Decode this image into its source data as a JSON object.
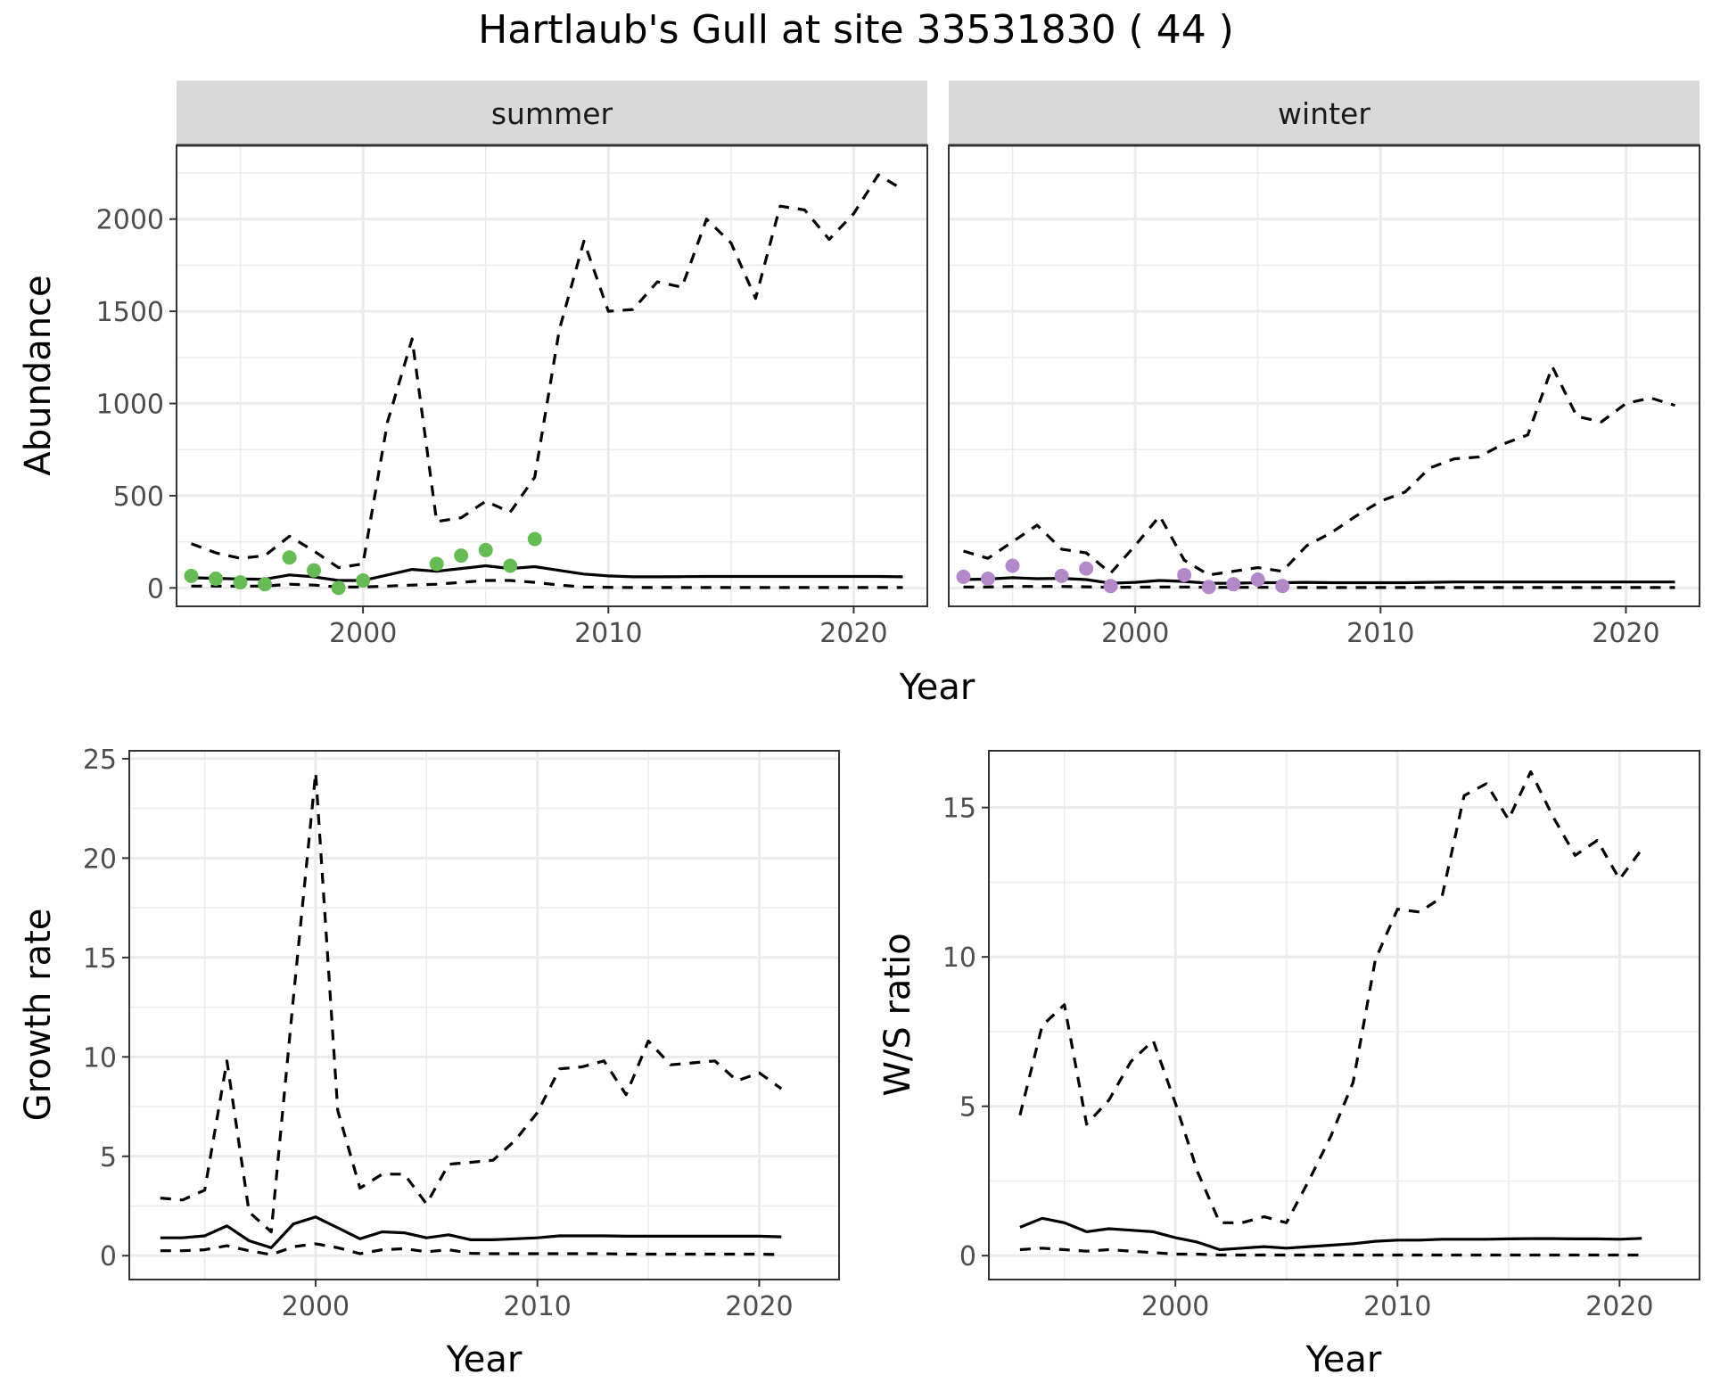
{
  "figure": {
    "title": "Hartlaub's Gull at site 33531830 ( 44 )"
  },
  "colors": {
    "summer_points": "#66bb55",
    "winter_points": "#b388c8",
    "lines": "#000000",
    "strip_fill": "#d9d9d9",
    "grid": "#ebebeb"
  },
  "chart_data": [
    {
      "type": "line",
      "panel": "abundance",
      "ylabel": "Abundance",
      "xlabel": "Year",
      "xlim": [
        1992.4,
        2023
      ],
      "ylim": [
        -100,
        2400
      ],
      "xticks": [
        2000,
        2010,
        2020
      ],
      "yticks": [
        0,
        500,
        1000,
        1500,
        2000
      ],
      "facets": [
        {
          "label": "summer",
          "series": [
            {
              "style": "dashed",
              "x": [
                1993,
                1994,
                1995,
                1996,
                1997,
                1998,
                1999,
                2000,
                2001,
                2002,
                2003,
                2004,
                2005,
                2006,
                2007,
                2008,
                2009,
                2010,
                2011,
                2012,
                2013,
                2014,
                2015,
                2016,
                2017,
                2018,
                2019,
                2020,
                2021,
                2022
              ],
              "values": [
                240,
                190,
                160,
                175,
                280,
                200,
                110,
                130,
                900,
                1350,
                360,
                380,
                470,
                410,
                600,
                1400,
                1880,
                1500,
                1510,
                1660,
                1630,
                2000,
                1870,
                1570,
                2070,
                2050,
                1890,
                2030,
                2240,
                2160
              ]
            },
            {
              "style": "solid",
              "x": [
                1993,
                1994,
                1995,
                1996,
                1997,
                1998,
                1999,
                2000,
                2001,
                2002,
                2003,
                2004,
                2005,
                2006,
                2007,
                2008,
                2009,
                2010,
                2011,
                2012,
                2013,
                2014,
                2015,
                2016,
                2017,
                2018,
                2019,
                2020,
                2021,
                2022
              ],
              "values": [
                55,
                52,
                48,
                47,
                70,
                60,
                40,
                40,
                70,
                100,
                90,
                105,
                120,
                105,
                115,
                95,
                75,
                65,
                60,
                60,
                61,
                62,
                62,
                62,
                62,
                62,
                62,
                62,
                62,
                60
              ]
            },
            {
              "style": "dashed",
              "x": [
                1993,
                1994,
                1995,
                1996,
                1997,
                1998,
                1999,
                2000,
                2001,
                2002,
                2003,
                2004,
                2005,
                2006,
                2007,
                2008,
                2009,
                2010,
                2011,
                2012,
                2013,
                2014,
                2015,
                2016,
                2017,
                2018,
                2019,
                2020,
                2021,
                2022
              ],
              "values": [
                10,
                10,
                10,
                10,
                20,
                15,
                5,
                5,
                10,
                15,
                20,
                30,
                40,
                40,
                30,
                15,
                5,
                3,
                2,
                2,
                2,
                2,
                2,
                2,
                2,
                2,
                2,
                2,
                2,
                2
              ]
            }
          ],
          "points": {
            "x": [
              1993,
              1994,
              1995,
              1996,
              1997,
              1998,
              1999,
              2000,
              2003,
              2004,
              2005,
              2006,
              2007
            ],
            "values": [
              65,
              50,
              30,
              20,
              165,
              95,
              0,
              40,
              130,
              175,
              205,
              120,
              265
            ]
          }
        },
        {
          "label": "winter",
          "series": [
            {
              "style": "dashed",
              "x": [
                1993,
                1994,
                1995,
                1996,
                1997,
                1998,
                1999,
                2000,
                2001,
                2002,
                2003,
                2004,
                2005,
                2006,
                2007,
                2008,
                2009,
                2010,
                2011,
                2012,
                2013,
                2014,
                2015,
                2016,
                2017,
                2018,
                2019,
                2020,
                2021,
                2022
              ],
              "values": [
                200,
                160,
                250,
                340,
                210,
                190,
                80,
                230,
                390,
                150,
                70,
                90,
                110,
                90,
                230,
                300,
                390,
                470,
                520,
                650,
                700,
                710,
                780,
                830,
                1200,
                930,
                900,
                1000,
                1030,
                990
              ]
            },
            {
              "style": "solid",
              "x": [
                1993,
                1994,
                1995,
                1996,
                1997,
                1998,
                1999,
                2000,
                2001,
                2002,
                2003,
                2004,
                2005,
                2006,
                2007,
                2008,
                2009,
                2010,
                2011,
                2012,
                2013,
                2014,
                2015,
                2016,
                2017,
                2018,
                2019,
                2020,
                2021,
                2022
              ],
              "values": [
                45,
                48,
                55,
                50,
                52,
                45,
                25,
                30,
                40,
                35,
                25,
                25,
                28,
                28,
                30,
                28,
                28,
                28,
                28,
                30,
                32,
                32,
                32,
                32,
                32,
                32,
                32,
                32,
                32,
                32
              ]
            },
            {
              "style": "dashed",
              "x": [
                1993,
                1994,
                1995,
                1996,
                1997,
                1998,
                1999,
                2000,
                2001,
                2002,
                2003,
                2004,
                2005,
                2006,
                2007,
                2008,
                2009,
                2010,
                2011,
                2012,
                2013,
                2014,
                2015,
                2016,
                2017,
                2018,
                2019,
                2020,
                2021,
                2022
              ],
              "values": [
                5,
                5,
                8,
                8,
                8,
                6,
                3,
                4,
                5,
                5,
                3,
                3,
                3,
                3,
                2,
                2,
                2,
                2,
                2,
                2,
                2,
                2,
                2,
                2,
                2,
                2,
                2,
                2,
                2,
                2
              ]
            }
          ],
          "points": {
            "x": [
              1993,
              1994,
              1995,
              1997,
              1998,
              1999,
              2002,
              2003,
              2004,
              2005,
              2006
            ],
            "values": [
              60,
              50,
              120,
              65,
              105,
              10,
              70,
              5,
              20,
              45,
              10
            ]
          }
        }
      ]
    },
    {
      "type": "line",
      "panel": "growth",
      "ylabel": "Growth rate",
      "xlabel": "Year",
      "xlim": [
        1991.6,
        2023.6
      ],
      "ylim": [
        -1.2,
        25.4
      ],
      "xticks": [
        2000,
        2010,
        2020
      ],
      "yticks": [
        0,
        5,
        10,
        15,
        20,
        25
      ],
      "series": [
        {
          "style": "dashed",
          "x": [
            1993,
            1994,
            1995,
            1996,
            1997,
            1998,
            1999,
            2000,
            2001,
            2002,
            2003,
            2004,
            2005,
            2006,
            2007,
            2008,
            2009,
            2010,
            2011,
            2012,
            2013,
            2014,
            2015,
            2016,
            2017,
            2018,
            2019,
            2020,
            2021
          ],
          "values": [
            2.9,
            2.8,
            3.3,
            9.8,
            2.2,
            1.2,
            13.0,
            24.3,
            7.3,
            3.4,
            4.1,
            4.1,
            2.6,
            4.6,
            4.7,
            4.8,
            5.8,
            7.2,
            9.4,
            9.5,
            9.8,
            8.1,
            10.8,
            9.6,
            9.7,
            9.8,
            8.8,
            9.2,
            8.4
          ]
        },
        {
          "style": "solid",
          "x": [
            1993,
            1994,
            1995,
            1996,
            1997,
            1998,
            1999,
            2000,
            2001,
            2002,
            2003,
            2004,
            2005,
            2006,
            2007,
            2008,
            2009,
            2010,
            2011,
            2012,
            2013,
            2014,
            2015,
            2016,
            2017,
            2018,
            2019,
            2020,
            2021
          ],
          "values": [
            0.9,
            0.9,
            1.0,
            1.5,
            0.75,
            0.4,
            1.6,
            1.95,
            1.4,
            0.85,
            1.2,
            1.15,
            0.9,
            1.05,
            0.8,
            0.8,
            0.85,
            0.9,
            1.0,
            1.0,
            1.0,
            0.98,
            0.98,
            0.98,
            0.98,
            0.98,
            0.98,
            0.98,
            0.95
          ]
        },
        {
          "style": "dashed",
          "x": [
            1993,
            1994,
            1995,
            1996,
            1997,
            1998,
            1999,
            2000,
            2001,
            2002,
            2003,
            2004,
            2005,
            2006,
            2007,
            2008,
            2009,
            2010,
            2011,
            2012,
            2013,
            2014,
            2015,
            2016,
            2017,
            2018,
            2019,
            2020,
            2021
          ],
          "values": [
            0.25,
            0.25,
            0.3,
            0.5,
            0.25,
            0.05,
            0.45,
            0.6,
            0.4,
            0.1,
            0.3,
            0.35,
            0.2,
            0.3,
            0.12,
            0.1,
            0.1,
            0.1,
            0.1,
            0.1,
            0.1,
            0.08,
            0.08,
            0.08,
            0.08,
            0.08,
            0.08,
            0.08,
            0.05
          ]
        }
      ]
    },
    {
      "type": "line",
      "panel": "ratio",
      "ylabel": "W/S ratio",
      "xlabel": "Year",
      "xlim": [
        1991.6,
        2023.6
      ],
      "ylim": [
        -0.8,
        16.9
      ],
      "xticks": [
        2000,
        2010,
        2020
      ],
      "yticks": [
        0,
        5,
        10,
        15
      ],
      "series": [
        {
          "style": "dashed",
          "x": [
            1993,
            1994,
            1995,
            1996,
            1997,
            1998,
            1999,
            2000,
            2001,
            2002,
            2003,
            2004,
            2005,
            2006,
            2007,
            2008,
            2009,
            2010,
            2011,
            2012,
            2013,
            2014,
            2015,
            2016,
            2017,
            2018,
            2019,
            2020,
            2021
          ],
          "values": [
            4.7,
            7.7,
            8.4,
            4.4,
            5.2,
            6.5,
            7.2,
            5.1,
            2.8,
            1.1,
            1.1,
            1.3,
            1.1,
            2.5,
            4.0,
            5.8,
            9.9,
            11.6,
            11.5,
            12.0,
            15.4,
            15.8,
            14.6,
            16.2,
            14.7,
            13.4,
            13.9,
            12.6,
            13.6
          ]
        },
        {
          "style": "solid",
          "x": [
            1993,
            1994,
            1995,
            1996,
            1997,
            1998,
            1999,
            2000,
            2001,
            2002,
            2003,
            2004,
            2005,
            2006,
            2007,
            2008,
            2009,
            2010,
            2011,
            2012,
            2013,
            2014,
            2015,
            2016,
            2017,
            2018,
            2019,
            2020,
            2021
          ],
          "values": [
            0.95,
            1.25,
            1.1,
            0.8,
            0.9,
            0.85,
            0.8,
            0.6,
            0.45,
            0.2,
            0.25,
            0.3,
            0.25,
            0.3,
            0.35,
            0.4,
            0.48,
            0.52,
            0.52,
            0.55,
            0.55,
            0.55,
            0.56,
            0.57,
            0.57,
            0.56,
            0.56,
            0.55,
            0.58
          ]
        },
        {
          "style": "dashed",
          "x": [
            1993,
            1994,
            1995,
            1996,
            1997,
            1998,
            1999,
            2000,
            2001,
            2002,
            2003,
            2004,
            2005,
            2006,
            2007,
            2008,
            2009,
            2010,
            2011,
            2012,
            2013,
            2014,
            2015,
            2016,
            2017,
            2018,
            2019,
            2020,
            2021
          ],
          "values": [
            0.2,
            0.25,
            0.2,
            0.15,
            0.2,
            0.15,
            0.1,
            0.05,
            0.05,
            0.02,
            0.02,
            0.02,
            0.02,
            0.02,
            0.02,
            0.02,
            0.02,
            0.02,
            0.02,
            0.02,
            0.02,
            0.02,
            0.02,
            0.02,
            0.02,
            0.02,
            0.02,
            0.02,
            0.02
          ]
        }
      ]
    }
  ]
}
